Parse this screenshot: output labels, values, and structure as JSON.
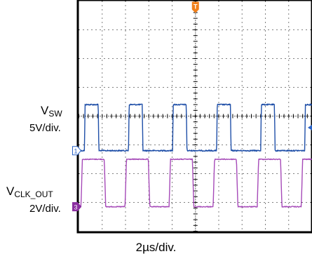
{
  "chart_data": {
    "type": "line",
    "timebase": "2µs/div",
    "timebase_display": "2µs/div.",
    "horizontal_divisions": 10,
    "vertical_divisions": 8,
    "trigger_marker": "T",
    "channels": [
      {
        "id": "1",
        "label_main": "V",
        "label_sub": "SW",
        "scale": "5V/div.",
        "color": "#1f4fa8",
        "marker_color": "#2a63c7",
        "volts_per_div": 5,
        "low_level_div": 0,
        "high_level_div": 1.6,
        "period_us": 3.78,
        "high_time_us": 1.18,
        "first_rise_us": 0.48
      },
      {
        "id": "3",
        "label_main": "V",
        "label_sub": "CLK_OUT",
        "scale": "2V/div.",
        "color": "#a64ab8",
        "marker_color": "#8a2fa0",
        "volts_per_div": 2,
        "low_level_div": 0,
        "high_level_div": 1.65,
        "period_us": 3.78,
        "high_time_us": 2.0,
        "first_rise_us": 0.18
      }
    ]
  }
}
